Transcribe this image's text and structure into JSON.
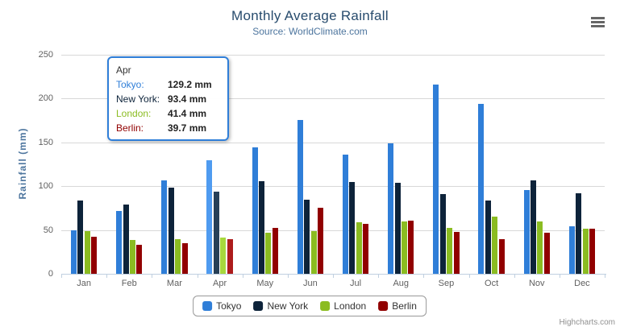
{
  "chart_data": {
    "type": "bar",
    "title": "Monthly Average Rainfall",
    "subtitle": "Source: WorldClimate.com",
    "ylabel": "Rainfall (mm)",
    "xlabel": "",
    "categories": [
      "Jan",
      "Feb",
      "Mar",
      "Apr",
      "May",
      "Jun",
      "Jul",
      "Aug",
      "Sep",
      "Oct",
      "Nov",
      "Dec"
    ],
    "series": [
      {
        "name": "Tokyo",
        "color": "#2f7ed8",
        "hover_color": "#4f9bf0",
        "values": [
          49.9,
          71.5,
          106.4,
          129.2,
          144.0,
          176.0,
          135.6,
          148.5,
          216.4,
          194.1,
          95.6,
          54.4
        ]
      },
      {
        "name": "New York",
        "color": "#0d233a",
        "hover_color": "#274057",
        "values": [
          83.6,
          78.8,
          98.5,
          93.4,
          106.0,
          84.5,
          105.0,
          104.3,
          91.2,
          83.5,
          106.6,
          92.3
        ]
      },
      {
        "name": "London",
        "color": "#8bbc21",
        "hover_color": "#a7d83d",
        "values": [
          48.9,
          38.8,
          39.3,
          41.4,
          47.0,
          48.3,
          59.0,
          59.6,
          52.4,
          65.2,
          59.3,
          51.2
        ]
      },
      {
        "name": "Berlin",
        "color": "#910000",
        "hover_color": "#ad1c1c",
        "values": [
          42.4,
          33.2,
          34.5,
          39.7,
          52.6,
          75.5,
          57.4,
          60.4,
          47.6,
          39.1,
          46.8,
          51.1
        ]
      }
    ],
    "ylim": [
      0,
      250
    ],
    "yticks": [
      0,
      50,
      100,
      150,
      200,
      250
    ],
    "grid": true,
    "legend_position": "bottom-center",
    "hovered_category": "Apr",
    "hovered_category_index": 3
  },
  "tooltip": {
    "header": "Apr",
    "border_color": "#2f7ed8",
    "rows": [
      {
        "label": "Tokyo:",
        "value": "129.2 mm",
        "color": "#2f7ed8"
      },
      {
        "label": "New York:",
        "value": "93.4 mm",
        "color": "#0d233a"
      },
      {
        "label": "London:",
        "value": "41.4 mm",
        "color": "#8bbc21"
      },
      {
        "label": "Berlin:",
        "value": "39.7 mm",
        "color": "#910000"
      }
    ]
  },
  "export_menu": {
    "icon": "hamburger-menu-icon"
  },
  "credit": {
    "text": "Highcharts.com"
  }
}
